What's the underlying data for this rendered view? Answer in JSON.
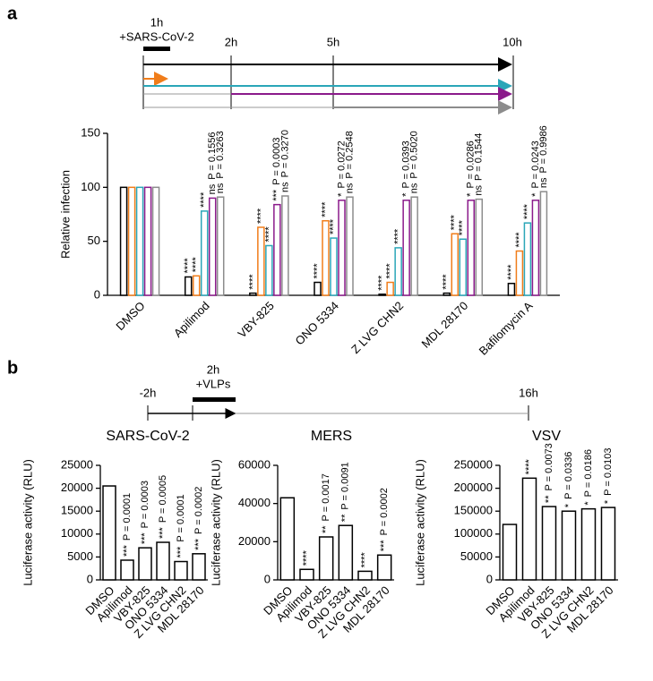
{
  "panel_labels": [
    "a",
    "b"
  ],
  "timeline_a": {
    "labels": [
      "1h",
      "+SARS-CoV-2",
      "2h",
      "5h",
      "10h"
    ]
  },
  "timeline_b": {
    "labels": [
      "-2h",
      "2h",
      "+VLPs",
      "16h"
    ]
  },
  "chart_data": [
    {
      "type": "bar",
      "y_label": "Relative infection",
      "categories": [
        "DMSO",
        "Apilimod",
        "VBY-825",
        "ONO 5334",
        "Z LVG CHN2",
        "MDL 28170",
        "Bafilomycin A"
      ],
      "ylim": [
        0,
        150
      ],
      "yticks": [
        0,
        50,
        100,
        150
      ],
      "series": [
        {
          "color": "#000000",
          "values": [
            100,
            17,
            2,
            12,
            1,
            2,
            11
          ],
          "stars": [
            null,
            "****",
            "****",
            "****",
            "****",
            "****",
            "****"
          ],
          "p_values": [
            null,
            null,
            null,
            null,
            null,
            null,
            null
          ]
        },
        {
          "color": "#f07d1a",
          "values": [
            100,
            18,
            63,
            69,
            12,
            57,
            41
          ],
          "stars": [
            null,
            "****",
            "****",
            "****",
            "****",
            "****",
            "****"
          ],
          "p_values": [
            null,
            null,
            null,
            null,
            null,
            null,
            null
          ]
        },
        {
          "color": "#2aa6b8",
          "values": [
            100,
            78,
            46,
            53,
            44,
            52,
            67
          ],
          "stars": [
            null,
            "****",
            "****",
            "****",
            "****",
            "****",
            "****"
          ],
          "p_values": [
            null,
            null,
            null,
            null,
            null,
            null,
            null
          ]
        },
        {
          "color": "#8b1a8b",
          "values": [
            100,
            90,
            84,
            88,
            88,
            88,
            88
          ],
          "stars": [
            null,
            "ns",
            "***",
            "*",
            "*",
            "*",
            "*"
          ],
          "p_values": [
            null,
            "P = 0.1556",
            "P = 0.0003",
            "P = 0.0272",
            "P = 0.0393",
            "P = 0.0286",
            "P = 0.0243"
          ]
        },
        {
          "color": "#8c8c8c",
          "values": [
            100,
            91,
            92,
            91,
            91,
            89,
            96
          ],
          "stars": [
            null,
            "ns",
            "ns",
            "ns",
            "ns",
            "ns",
            "ns"
          ],
          "p_values": [
            null,
            "P = 0.3263",
            "P = 0.3270",
            "P = 0.2548",
            "P = 0.5020",
            "P = 0.1544",
            "P = 0.9986"
          ]
        }
      ]
    },
    {
      "type": "bar",
      "title": "SARS-CoV-2",
      "y_label": "Luciferase activity (RLU)",
      "color": "#ffffff",
      "categories": [
        "DMSO",
        "Apilimod",
        "VBY-825",
        "ONO 5334",
        "Z LVG CHN2",
        "MDL 28170"
      ],
      "values": [
        20500,
        4300,
        7000,
        8200,
        4000,
        5700
      ],
      "stars": [
        null,
        "***",
        "***",
        "***",
        "***",
        "***"
      ],
      "p_values": [
        null,
        "P = 0.0001",
        "P = 0.0003",
        "P = 0.0005",
        "P = 0.0001",
        "P = 0.0002"
      ],
      "ylim": [
        0,
        25000
      ],
      "yticks": [
        0,
        5000,
        10000,
        15000,
        20000,
        25000
      ]
    },
    {
      "type": "bar",
      "title": "MERS",
      "y_label": "Luciferase activity (RLU)",
      "color": "#ffffff",
      "categories": [
        "DMSO",
        "Apilimod",
        "VBY-825",
        "ONO 5334",
        "Z LVG CHN2",
        "MDL 28170"
      ],
      "values": [
        43000,
        5500,
        22500,
        28500,
        4500,
        13000
      ],
      "stars": [
        null,
        "****",
        "**",
        "**",
        "****",
        "***"
      ],
      "p_values": [
        null,
        null,
        "P = 0.0017",
        "P = 0.0091",
        null,
        "P = 0.0002"
      ],
      "ylim": [
        0,
        60000
      ],
      "yticks": [
        0,
        20000,
        40000,
        60000
      ]
    },
    {
      "type": "bar",
      "title": "VSV",
      "y_label": "Luciferase activity (RLU)",
      "color": "#ffffff",
      "categories": [
        "DMSO",
        "Apilimod",
        "VBY-825",
        "ONO 5334",
        "Z LVG CHN2",
        "MDL 28170"
      ],
      "values": [
        121000,
        222000,
        160000,
        150000,
        155000,
        158000
      ],
      "stars": [
        null,
        "****",
        "**",
        "*",
        "*",
        "*"
      ],
      "p_values": [
        null,
        null,
        "P = 0.0073",
        "P = 0.0336",
        "P = 0.0186",
        "P = 0.0103"
      ],
      "ylim": [
        0,
        250000
      ],
      "yticks": [
        0,
        50000,
        100000,
        150000,
        200000,
        250000
      ]
    }
  ]
}
